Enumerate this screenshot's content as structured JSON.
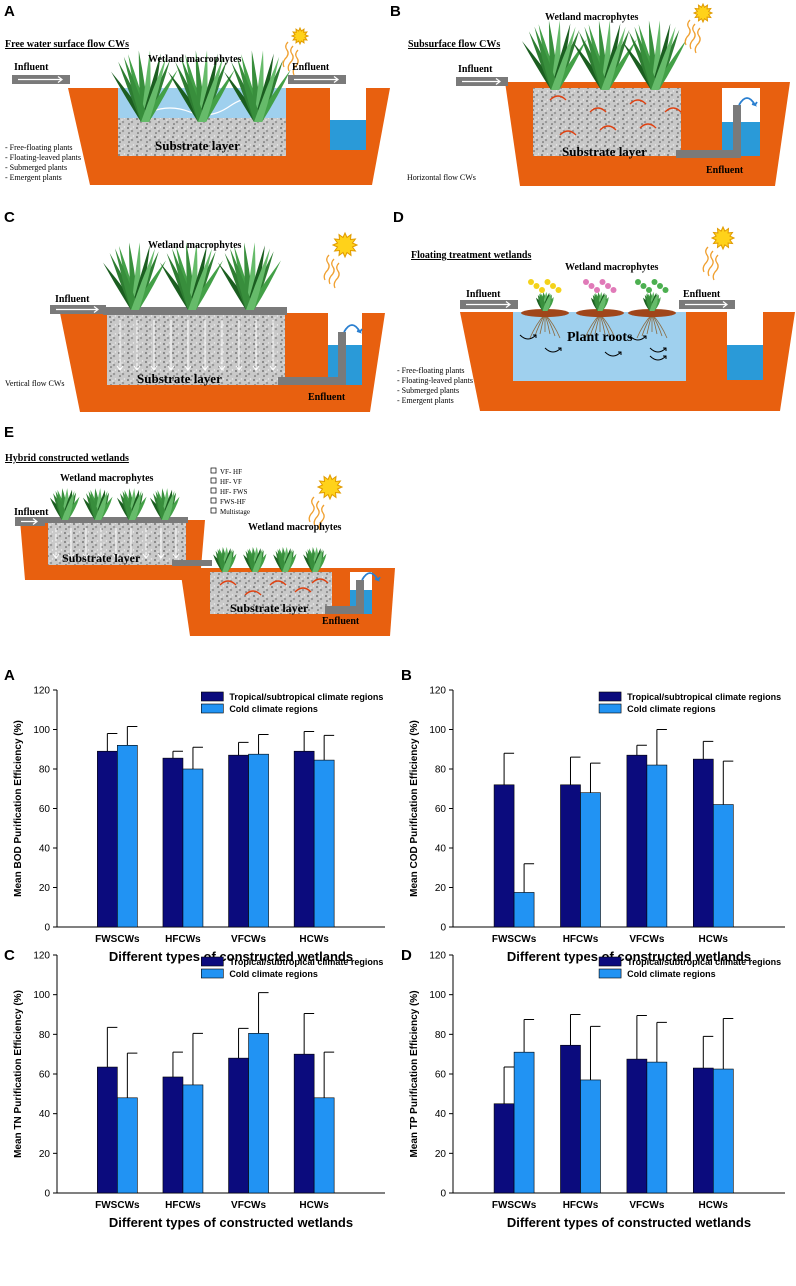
{
  "diagrams": [
    {
      "panel": "A",
      "title": "Free water surface flow CWs",
      "influent": "Influent",
      "macrophytes": "Wetland macrophytes",
      "effluent": "Enfluent",
      "substrate": "Substrate layer",
      "plant_types": [
        "- Free-floating plants",
        "- Floating-leaved plants",
        "- Submerged plants",
        "- Emergent plants"
      ]
    },
    {
      "panel": "B",
      "title": "Subsurface flow CWs",
      "macrophytes": "Wetland macrophytes",
      "influent": "Influent",
      "substrate": "Substrate layer",
      "effluent": "Enfluent",
      "note": "Horizontal flow CWs"
    },
    {
      "panel": "C",
      "macrophytes": "Wetland macrophytes",
      "influent": "Influent",
      "substrate": "Substrate layer",
      "effluent": "Enfluent",
      "note": "Vertical flow CWs"
    },
    {
      "panel": "D",
      "title": "Floating treatment wetlands",
      "macrophytes": "Wetland macrophytes",
      "influent": "Influent",
      "effluent": "Enfluent",
      "roots": "Plant roots",
      "plant_types": [
        "- Free-floating plants",
        "- Floating-leaved plants",
        "- Submerged plants",
        "- Emergent plants"
      ]
    },
    {
      "panel": "E",
      "title": "Hybrid constructed wetlands",
      "macrophytes": [
        "Wetland macrophytes",
        "Wetland macrophytes"
      ],
      "influent": "Influent",
      "substrate": [
        "Substrate layer",
        "Substrate layer"
      ],
      "effluent": "Enfluent",
      "combinations": [
        "VF- HF",
        "HF- VF",
        "HF- FWS",
        "FWS-HF",
        "Multistage"
      ]
    }
  ],
  "chart_data": [
    {
      "type": "bar",
      "panel": "A",
      "x_label": "Different types of constructed wetlands",
      "y_label": "Mean BOD Purification Efficiency (%)",
      "categories": [
        "FWSCWs",
        "HFCWs",
        "VFCWs",
        "HCWs"
      ],
      "ylim": [
        0,
        120
      ],
      "yticks": [
        0,
        20,
        40,
        60,
        80,
        100,
        120
      ],
      "legend": "upper right",
      "grid": false,
      "series": [
        {
          "name": "Tropical/subtropical climate regions",
          "color": "#0b0b7d",
          "values": [
            89,
            85.5,
            87,
            89
          ],
          "errors": [
            9,
            3.5,
            6.5,
            10
          ]
        },
        {
          "name": "Cold climate regions",
          "color": "#2193f3",
          "values": [
            92,
            80,
            87.5,
            84.5
          ],
          "errors": [
            9.5,
            11,
            10,
            12.5
          ]
        }
      ]
    },
    {
      "type": "bar",
      "panel": "B",
      "x_label": "Different types of constructed wetlands",
      "y_label": "Mean COD Purification Efficiency (%)",
      "categories": [
        "FWSCWs",
        "HFCWs",
        "VFCWs",
        "HCWs"
      ],
      "ylim": [
        0,
        120
      ],
      "yticks": [
        0,
        20,
        40,
        60,
        80,
        100,
        120
      ],
      "legend": "upper right",
      "grid": false,
      "series": [
        {
          "name": "Tropical/subtropical climate regions",
          "color": "#0b0b7d",
          "values": [
            72,
            72,
            87,
            85
          ],
          "errors": [
            16,
            14,
            5,
            9
          ]
        },
        {
          "name": "Cold climate regions",
          "color": "#2193f3",
          "values": [
            17.5,
            68,
            82,
            62
          ],
          "errors": [
            14.5,
            15,
            18,
            22
          ]
        }
      ]
    },
    {
      "type": "bar",
      "panel": "C",
      "x_label": "Different types of constructed wetlands",
      "y_label": "Mean TN Purification Efficiency (%)",
      "categories": [
        "FWSCWs",
        "HFCWs",
        "VFCWs",
        "HCWs"
      ],
      "ylim": [
        0,
        120
      ],
      "yticks": [
        0,
        20,
        40,
        60,
        80,
        100,
        120
      ],
      "legend": "upper right",
      "grid": false,
      "series": [
        {
          "name": "Tropical/subtropical climate regions",
          "color": "#0b0b7d",
          "values": [
            63.5,
            58.5,
            68,
            70
          ],
          "errors": [
            20,
            12.5,
            15,
            20.5
          ]
        },
        {
          "name": "Cold climate regions",
          "color": "#2193f3",
          "values": [
            48,
            54.5,
            80.5,
            48
          ],
          "errors": [
            22.5,
            26,
            20.5,
            23
          ]
        }
      ]
    },
    {
      "type": "bar",
      "panel": "D",
      "x_label": "Different types of constructed wetlands",
      "y_label": "Mean TP Purification Efficiency (%)",
      "categories": [
        "FWSCWs",
        "HFCWs",
        "VFCWs",
        "HCWs"
      ],
      "ylim": [
        0,
        120
      ],
      "yticks": [
        0,
        20,
        40,
        60,
        80,
        100,
        120
      ],
      "legend": "upper right",
      "grid": false,
      "series": [
        {
          "name": "Tropical/subtropical climate regions",
          "color": "#0b0b7d",
          "values": [
            45,
            74.5,
            67.5,
            63
          ],
          "errors": [
            18.5,
            15.5,
            22,
            16
          ]
        },
        {
          "name": "Cold climate regions",
          "color": "#2193f3",
          "values": [
            71,
            57,
            66,
            62.5
          ],
          "errors": [
            16.5,
            27,
            20,
            25.5
          ]
        }
      ]
    }
  ]
}
